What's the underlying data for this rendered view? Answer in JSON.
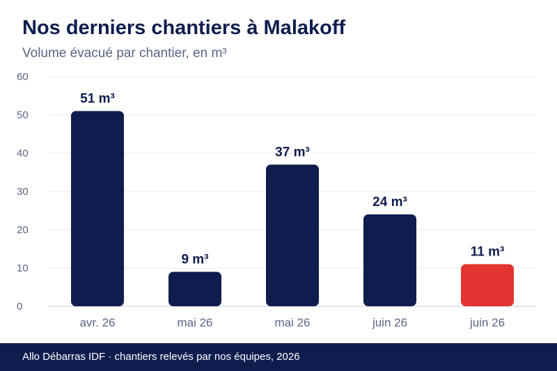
{
  "title": "Nos derniers chantiers à Malakoff",
  "subtitle": "Volume évacué par chantier, en m³",
  "footer": "Allo Débarras IDF · chantiers relevés par nos équipes, 2026",
  "colors": {
    "bar": "#0f1d4e",
    "highlight": "#e3342f",
    "grid": "#e8e8ee",
    "axis_text": "#5a6585",
    "label_text": "#0f1d4e"
  },
  "chart_data": {
    "type": "bar",
    "categories": [
      "avr. 26",
      "mai 26",
      "mai 26",
      "juin 26",
      "juin 26"
    ],
    "values": [
      51,
      9,
      37,
      24,
      11
    ],
    "data_labels": [
      "51 m³",
      "9 m³",
      "37 m³",
      "24 m³",
      "11 m³"
    ],
    "highlight_index": 4,
    "ylim": [
      0,
      60
    ],
    "yticks": [
      0,
      10,
      20,
      30,
      40,
      50,
      60
    ],
    "grid": true,
    "xlabel": "",
    "ylabel": ""
  }
}
